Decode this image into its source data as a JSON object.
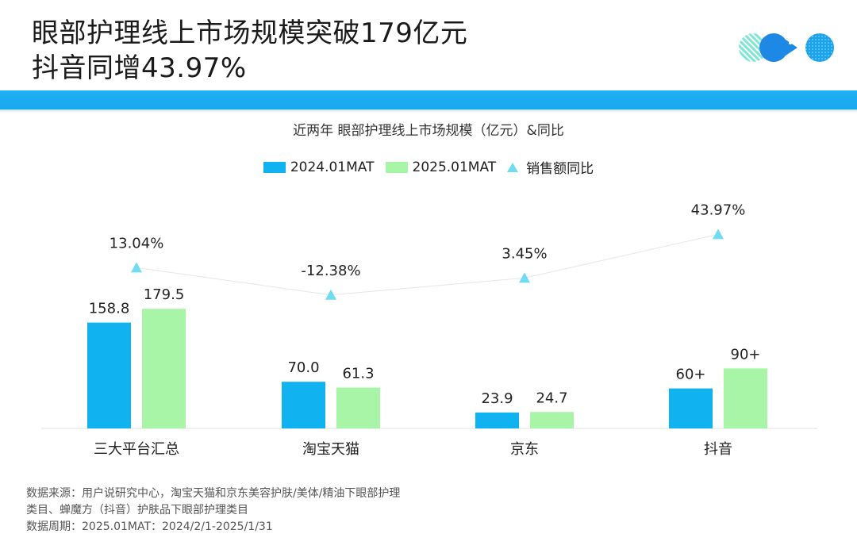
{
  "title": {
    "line1": "眼部护理线上市场规模突破179亿元",
    "line2": "抖音同增43.97%"
  },
  "logo_icon": "brand-logo-circles",
  "colors": {
    "series_2024": "#10b3f0",
    "series_2025": "#a8f5a8",
    "yoy_marker": "#6fdcf2",
    "band": "#1fb1f2"
  },
  "legend": {
    "s1": "2024.01MAT",
    "s2": "2025.01MAT",
    "s3": "销售额同比"
  },
  "chart_data": {
    "type": "bar",
    "title": "近两年 眼部护理线上市场规模（亿元）&同比",
    "categories": [
      "三大平台汇总",
      "淘宝天猫",
      "京东",
      "抖音"
    ],
    "series": [
      {
        "name": "2024.01MAT",
        "values": [
          158.8,
          70.0,
          23.9,
          60
        ],
        "labels": [
          "158.8",
          "70.0",
          "23.9",
          "60+"
        ]
      },
      {
        "name": "2025.01MAT",
        "values": [
          179.5,
          61.3,
          24.7,
          90
        ],
        "labels": [
          "179.5",
          "61.3",
          "24.7",
          "90+"
        ]
      }
    ],
    "line_series": {
      "name": "销售额同比",
      "values": [
        13.04,
        -12.38,
        3.45,
        43.97
      ],
      "labels": [
        "13.04%",
        "-12.38%",
        "3.45%",
        "43.97%"
      ]
    },
    "legend_position": "top",
    "grid": false
  },
  "source": {
    "line1": "数据来源：用户说研究中心，淘宝天猫和京东美容护肤/美体/精油下眼部护理",
    "line2": "类目、蝉魔方（抖音）护肤品下眼部护理类目",
    "line3": "数据周期：2025.01MAT：2024/2/1-2025/1/31"
  }
}
